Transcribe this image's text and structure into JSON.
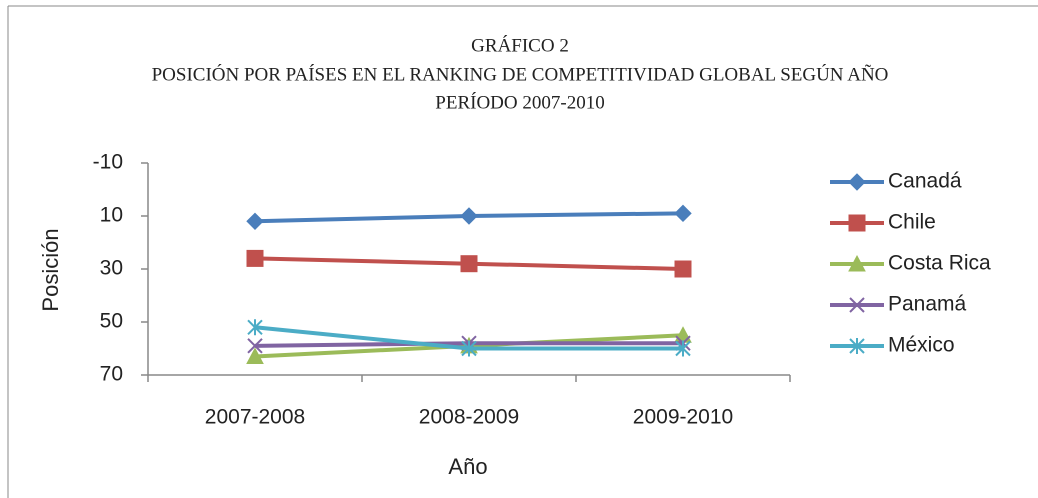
{
  "chart_data": {
    "type": "line",
    "title": [
      "GRÁFICO 2",
      "POSICIÓN POR PAÍSES EN EL RANKING DE COMPETITIVIDAD GLOBAL SEGÚN AÑO",
      "PERÍODO 2007-2010"
    ],
    "x_label": "Año",
    "y_label": "Posición",
    "categories": [
      "2007-2008",
      "2008-2009",
      "2009-2010"
    ],
    "series": [
      {
        "name": "Canadá",
        "color": "#4a7ebb",
        "marker": "diamond",
        "values": [
          12,
          10,
          9
        ]
      },
      {
        "name": "Chile",
        "color": "#c0504d",
        "marker": "square",
        "values": [
          26,
          28,
          30
        ]
      },
      {
        "name": "Costa Rica",
        "color": "#9bbb59",
        "marker": "triangle",
        "values": [
          63,
          59,
          55
        ]
      },
      {
        "name": "Panamá",
        "color": "#8064a2",
        "marker": "x",
        "values": [
          59,
          58,
          58
        ]
      },
      {
        "name": "México",
        "color": "#4bacc6",
        "marker": "star",
        "values": [
          52,
          60,
          60
        ]
      }
    ],
    "ylim": [
      -10,
      70
    ],
    "y_inverted": true,
    "yticks": [
      -10,
      10,
      30,
      50,
      70
    ],
    "legend": "right"
  }
}
